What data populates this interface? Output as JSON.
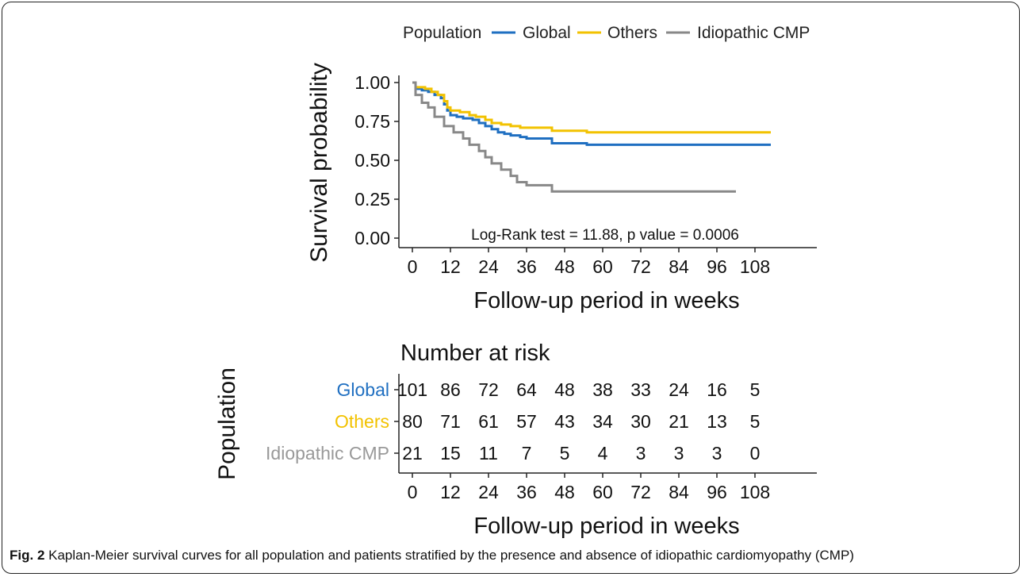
{
  "chart_data": [
    {
      "type": "line",
      "subtype": "kaplan-meier",
      "title": "",
      "xlabel": "Follow-up period in weeks",
      "ylabel": "Survival probability",
      "xlim": [
        0,
        114
      ],
      "ylim": [
        0,
        1
      ],
      "x_ticks": [
        "0",
        "12",
        "24",
        "36",
        "48",
        "60",
        "72",
        "84",
        "96",
        "108"
      ],
      "y_ticks": [
        "0.00",
        "0.25",
        "0.50",
        "0.75",
        "1.00"
      ],
      "legend_title": "Population",
      "legend_position": "top",
      "annotation": "Log-Rank test = 11.88, p value = 0.0006",
      "series": [
        {
          "name": "Global",
          "color": "#1f6fc1",
          "points": [
            [
              0,
              1.0
            ],
            [
              1,
              0.96
            ],
            [
              3,
              0.95
            ],
            [
              5,
              0.94
            ],
            [
              7,
              0.92
            ],
            [
              9,
              0.9
            ],
            [
              10,
              0.86
            ],
            [
              11,
              0.82
            ],
            [
              12,
              0.79
            ],
            [
              14,
              0.78
            ],
            [
              16,
              0.77
            ],
            [
              19,
              0.76
            ],
            [
              21,
              0.74
            ],
            [
              23,
              0.72
            ],
            [
              25,
              0.7
            ],
            [
              27,
              0.68
            ],
            [
              29,
              0.67
            ],
            [
              31,
              0.66
            ],
            [
              34,
              0.65
            ],
            [
              36,
              0.64
            ],
            [
              40,
              0.64
            ],
            [
              44,
              0.61
            ],
            [
              55,
              0.6
            ],
            [
              113,
              0.6
            ]
          ]
        },
        {
          "name": "Others",
          "color": "#f2c200",
          "points": [
            [
              0,
              1.0
            ],
            [
              1,
              0.97
            ],
            [
              4,
              0.96
            ],
            [
              6,
              0.94
            ],
            [
              8,
              0.92
            ],
            [
              10,
              0.88
            ],
            [
              11,
              0.84
            ],
            [
              12,
              0.82
            ],
            [
              15,
              0.81
            ],
            [
              18,
              0.79
            ],
            [
              20,
              0.78
            ],
            [
              23,
              0.76
            ],
            [
              25,
              0.74
            ],
            [
              28,
              0.73
            ],
            [
              31,
              0.72
            ],
            [
              34,
              0.71
            ],
            [
              44,
              0.69
            ],
            [
              55,
              0.68
            ],
            [
              113,
              0.68
            ]
          ]
        },
        {
          "name": "Idiopathic CMP",
          "color": "#888888",
          "points": [
            [
              0,
              1.0
            ],
            [
              1,
              0.92
            ],
            [
              3,
              0.87
            ],
            [
              5,
              0.84
            ],
            [
              7,
              0.78
            ],
            [
              10,
              0.72
            ],
            [
              13,
              0.68
            ],
            [
              16,
              0.64
            ],
            [
              18,
              0.6
            ],
            [
              21,
              0.56
            ],
            [
              23,
              0.52
            ],
            [
              25,
              0.48
            ],
            [
              28,
              0.44
            ],
            [
              31,
              0.4
            ],
            [
              33,
              0.36
            ],
            [
              36,
              0.34
            ],
            [
              44,
              0.3
            ],
            [
              102,
              0.3
            ]
          ]
        }
      ]
    },
    {
      "type": "table",
      "title": "Number at risk",
      "xlabel": "Follow-up period in weeks",
      "ylabel": "Population",
      "x_ticks": [
        "0",
        "12",
        "24",
        "36",
        "48",
        "60",
        "72",
        "84",
        "96",
        "108"
      ],
      "rows": [
        {
          "name": "Global",
          "color": "#1f6fc1",
          "values": [
            101,
            86,
            72,
            64,
            48,
            38,
            33,
            24,
            16,
            5
          ]
        },
        {
          "name": "Others",
          "color": "#f2c200",
          "values": [
            80,
            71,
            61,
            57,
            43,
            34,
            30,
            21,
            13,
            5
          ]
        },
        {
          "name": "Idiopathic CMP",
          "color": "#999999",
          "values": [
            21,
            15,
            11,
            7,
            5,
            4,
            3,
            3,
            3,
            0
          ]
        }
      ]
    }
  ],
  "caption": {
    "label": "Fig. 2",
    "text": " Kaplan-Meier survival curves for all population and patients stratified by the presence and absence of idiopathic cardiomyopathy (CMP)"
  }
}
